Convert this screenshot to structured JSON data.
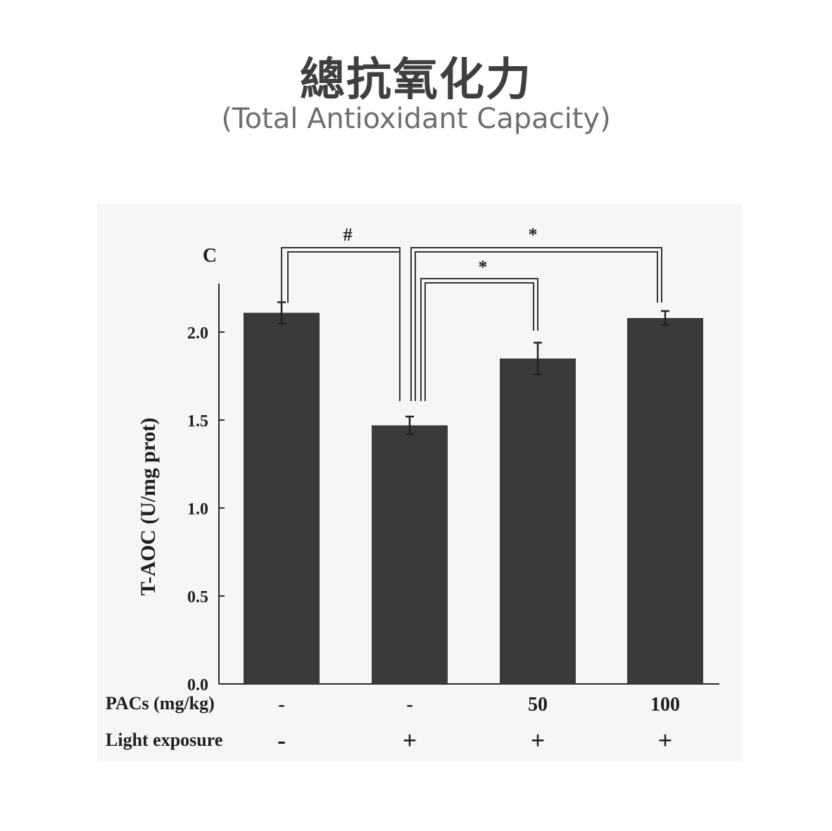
{
  "title_zh": "總抗氧化力",
  "title_en": "(Total Antioxidant Capacity)",
  "colors": {
    "bar": "#3a3a3a",
    "axis": "#2a2a2a",
    "panel": "#f6f6f4"
  },
  "chart_data": {
    "type": "bar",
    "panel_label": "C",
    "ylabel": "T-AOC (U/mg prot)",
    "ylim": [
      0,
      2.3
    ],
    "yticks": [
      "0.0",
      "0.5",
      "1.0",
      "1.5",
      "2.0"
    ],
    "ytick_values": [
      0,
      0.5,
      1.0,
      1.5,
      2.0
    ],
    "categories": [
      "1",
      "2",
      "3",
      "4"
    ],
    "values": [
      2.11,
      1.47,
      1.85,
      2.08
    ],
    "errors": [
      0.06,
      0.05,
      0.09,
      0.04
    ],
    "row_labels": [
      "PACs (mg/kg)",
      "Light exposure"
    ],
    "pacs": [
      "-",
      "-",
      "50",
      "100"
    ],
    "light": [
      "-",
      "+",
      "+",
      "+"
    ],
    "significance": [
      {
        "from": 0,
        "to": 1,
        "label": "#"
      },
      {
        "from": 1,
        "to": 2,
        "label": "*"
      },
      {
        "from": 1,
        "to": 3,
        "label": "*"
      }
    ],
    "grid": false
  }
}
